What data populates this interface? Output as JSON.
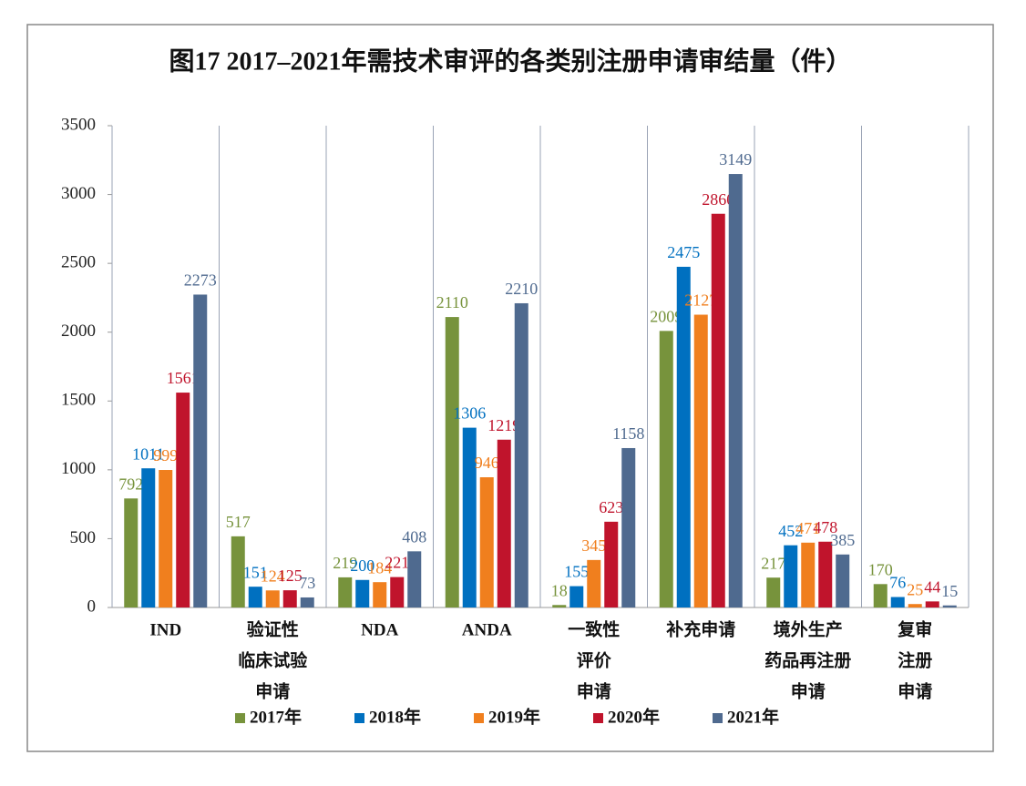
{
  "chart_data": {
    "type": "bar",
    "title": "图17 2017–2021年需技术审评的各类别注册申请审结量（件）",
    "categories": [
      [
        "IND"
      ],
      [
        "验证性",
        "临床试验",
        "申请"
      ],
      [
        "NDA"
      ],
      [
        "ANDA"
      ],
      [
        "一致性",
        "评价",
        "申请"
      ],
      [
        "补充申请"
      ],
      [
        "境外生产",
        "药品再注册",
        "申请"
      ],
      [
        "复审",
        "注册",
        "申请"
      ]
    ],
    "series": [
      {
        "name": "2017年",
        "color": "#77933c",
        "values": [
          792,
          517,
          219,
          2110,
          18,
          2009,
          217,
          170
        ]
      },
      {
        "name": "2018年",
        "color": "#0070c0",
        "values": [
          1011,
          151,
          200,
          1306,
          155,
          2475,
          452,
          76
        ]
      },
      {
        "name": "2019年",
        "color": "#f07f1e",
        "values": [
          999,
          124,
          184,
          946,
          345,
          2127,
          471,
          25
        ]
      },
      {
        "name": "2020年",
        "color": "#c0142c",
        "values": [
          1561,
          125,
          221,
          1219,
          623,
          2860,
          478,
          44
        ]
      },
      {
        "name": "2021年",
        "color": "#4f6a8f",
        "values": [
          2273,
          73,
          408,
          2210,
          1158,
          3149,
          385,
          15
        ]
      }
    ],
    "ylim": [
      0,
      3500
    ],
    "yticks": [
      0,
      500,
      1000,
      1500,
      2000,
      2500,
      3000,
      3500
    ],
    "grid": "categories",
    "legend": "bottom"
  }
}
